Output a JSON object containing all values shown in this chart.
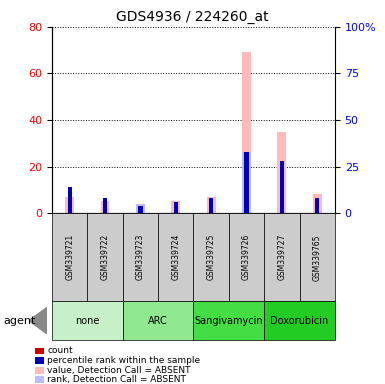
{
  "title": "GDS4936 / 224260_at",
  "samples": [
    "GSM339721",
    "GSM339722",
    "GSM339723",
    "GSM339724",
    "GSM339725",
    "GSM339726",
    "GSM339727",
    "GSM339765"
  ],
  "groups": [
    {
      "label": "none",
      "color": "#c8f0c8",
      "samples": [
        0,
        1
      ]
    },
    {
      "label": "ARC",
      "color": "#90e890",
      "samples": [
        2,
        3
      ]
    },
    {
      "label": "Sangivamycin",
      "color": "#44dd44",
      "samples": [
        4,
        5
      ]
    },
    {
      "label": "Doxorubicin",
      "color": "#22cc22",
      "samples": [
        6,
        7
      ]
    }
  ],
  "count_values": [
    6,
    4,
    2,
    4,
    5,
    0,
    0,
    5
  ],
  "percentile_rank_values": [
    14,
    8,
    4,
    6,
    8,
    33,
    28,
    8
  ],
  "absent_value_values": [
    7,
    5,
    3,
    5,
    7,
    69,
    35,
    8
  ],
  "absent_rank_values": [
    0,
    0,
    5,
    0,
    0,
    33,
    0,
    0
  ],
  "ylim_left": [
    0,
    80
  ],
  "ylim_right": [
    0,
    100
  ],
  "yticks_left": [
    0,
    20,
    40,
    60,
    80
  ],
  "yticks_right": [
    0,
    25,
    50,
    75,
    100
  ],
  "bar_width": 0.25,
  "small_bar_width": 0.12,
  "count_color": "#cc0000",
  "percentile_color": "#0000bb",
  "absent_value_color": "#ffbbbb",
  "absent_rank_color": "#bbbbff",
  "sample_bg_color": "#cccccc",
  "legend_items": [
    {
      "color": "#cc0000",
      "label": "count"
    },
    {
      "color": "#0000bb",
      "label": "percentile rank within the sample"
    },
    {
      "color": "#ffbbbb",
      "label": "value, Detection Call = ABSENT"
    },
    {
      "color": "#bbbbff",
      "label": "rank, Detection Call = ABSENT"
    }
  ]
}
